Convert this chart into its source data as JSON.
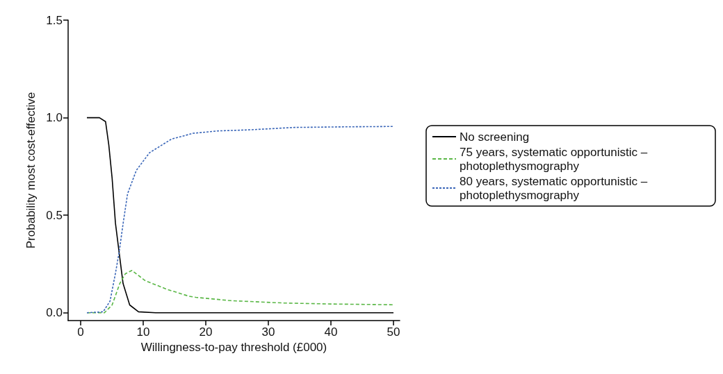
{
  "chart_data": {
    "type": "line",
    "xlabel": "Willingness-to-pay threshold (£000)",
    "ylabel": "Probability most cost-effective",
    "xlim": [
      -2,
      51
    ],
    "ylim": [
      -0.04,
      1.5
    ],
    "xticks": [
      0,
      10,
      20,
      30,
      40,
      50
    ],
    "yticks": [
      {
        "value": 0,
        "label": "0.0"
      },
      {
        "value": 0.5,
        "label": "0.5"
      },
      {
        "value": 1,
        "label": "1.0"
      },
      {
        "value": 1.5,
        "label": "1.5"
      }
    ],
    "grid": false,
    "legend": "right",
    "marker": "none",
    "series": [
      {
        "name": "No screening",
        "color": "#000000",
        "line_style": "solid",
        "x": [
          1,
          3,
          3.98,
          4.5,
          5.03,
          5.56,
          6.15,
          6.78,
          7.84,
          9.25,
          12,
          20,
          30,
          40,
          50
        ],
        "values": [
          1,
          1,
          0.98,
          0.86,
          0.69,
          0.46,
          0.31,
          0.15,
          0.04,
          0.005,
          0,
          0,
          0,
          0,
          0
        ]
      },
      {
        "name": "75 years, systematic opportunistic – photoplethysmography",
        "color": "#5ab746",
        "line_style": "dashed",
        "x": [
          1,
          3.8,
          5.03,
          6.26,
          7.14,
          8.2,
          10.3,
          13.8,
          17.3,
          18.4,
          24,
          32.5,
          40,
          50
        ],
        "values": [
          0,
          0,
          0.04,
          0.15,
          0.2,
          0.217,
          0.165,
          0.12,
          0.085,
          0.079,
          0.062,
          0.05,
          0.045,
          0.041
        ]
      },
      {
        "name": "80 years, systematic opportunistic – photoplethysmography",
        "color": "#3a66b8",
        "line_style": "dotted",
        "x": [
          1,
          3.6,
          4.7,
          5.55,
          6.15,
          6.8,
          7.5,
          8.9,
          11,
          14.5,
          18,
          21.9,
          27.2,
          34.2,
          42,
          50
        ],
        "values": [
          0,
          0.005,
          0.06,
          0.2,
          0.31,
          0.46,
          0.61,
          0.73,
          0.82,
          0.89,
          0.92,
          0.932,
          0.938,
          0.95,
          0.953,
          0.955
        ]
      }
    ]
  }
}
